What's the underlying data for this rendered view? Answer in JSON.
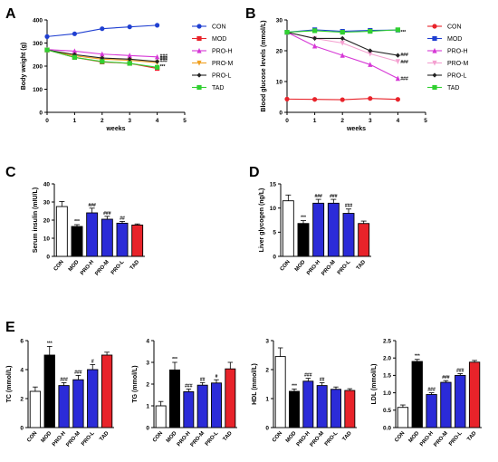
{
  "chart_data": [
    {
      "id": "A",
      "panel_label": "A",
      "type": "line",
      "xlabel": "weeks",
      "ylabel": "Body weight (g)",
      "xlim": [
        0,
        5
      ],
      "ylim": [
        0,
        400
      ],
      "xticks": [
        0,
        1,
        2,
        3,
        4,
        5
      ],
      "yticks": [
        0,
        100,
        200,
        300,
        400
      ],
      "x": [
        0,
        1,
        2,
        3,
        4
      ],
      "series": [
        {
          "name": "CON",
          "color": "#1f3fd1",
          "marker": "circle",
          "values": [
            328,
            340,
            362,
            370,
            377
          ]
        },
        {
          "name": "MOD",
          "color": "#e8232a",
          "marker": "square",
          "values": [
            270,
            238,
            218,
            212,
            190
          ]
        },
        {
          "name": "PRO-H",
          "color": "#d638d6",
          "marker": "triangle-up",
          "values": [
            272,
            265,
            252,
            246,
            240
          ]
        },
        {
          "name": "PRO-M",
          "color": "#f0a020",
          "marker": "triangle-down",
          "values": [
            270,
            245,
            230,
            225,
            215
          ]
        },
        {
          "name": "PRO-L",
          "color": "#222222",
          "marker": "diamond",
          "values": [
            270,
            250,
            235,
            230,
            220
          ]
        },
        {
          "name": "TAD",
          "color": "#30d030",
          "marker": "square",
          "values": [
            270,
            238,
            220,
            212,
            195
          ]
        }
      ],
      "annotations": [
        "###",
        "###",
        "###",
        "***"
      ],
      "legend": "right"
    },
    {
      "id": "B",
      "panel_label": "B",
      "type": "line",
      "xlabel": "weeks",
      "ylabel": "Blood glucose levels (mmol/L)",
      "xlim": [
        0,
        5
      ],
      "ylim": [
        0,
        30
      ],
      "xticks": [
        0,
        1,
        2,
        3,
        4,
        5
      ],
      "yticks": [
        0,
        10,
        20,
        30
      ],
      "x": [
        0,
        1,
        2,
        3,
        4
      ],
      "series": [
        {
          "name": "CON",
          "color": "#e8232a",
          "marker": "circle",
          "values": [
            4.3,
            4.2,
            4.1,
            4.5,
            4.2
          ]
        },
        {
          "name": "MOD",
          "color": "#1f3fd1",
          "marker": "square",
          "values": [
            26,
            26.8,
            26.3,
            26.6,
            26.7
          ]
        },
        {
          "name": "PRO-H",
          "color": "#d638d6",
          "marker": "triangle-up",
          "values": [
            26,
            21.5,
            18.5,
            15.5,
            11
          ]
        },
        {
          "name": "PRO-M",
          "color": "#f4a0d0",
          "marker": "triangle-down",
          "values": [
            26,
            24,
            22.5,
            19,
            16.5
          ]
        },
        {
          "name": "PRO-L",
          "color": "#222222",
          "marker": "diamond",
          "values": [
            26,
            24,
            24,
            20,
            18.5
          ]
        },
        {
          "name": "TAD",
          "color": "#30d030",
          "marker": "square",
          "values": [
            26,
            26.5,
            26,
            26.3,
            26.8
          ]
        }
      ],
      "annotations": [
        "***",
        "###",
        "###",
        "###"
      ],
      "legend": "right"
    },
    {
      "id": "C",
      "panel_label": "C",
      "type": "bar",
      "ylabel": "Serum insulin (mIU/L)",
      "ylim": [
        0,
        40
      ],
      "yticks": [
        0,
        10,
        20,
        30,
        40
      ],
      "categories": [
        "CON",
        "MOD",
        "PRO-H",
        "PRO-M",
        "PRO-L",
        "TAD"
      ],
      "values": [
        27.5,
        16.5,
        24,
        20.5,
        18.3,
        17.3
      ],
      "errors": [
        2.8,
        1.0,
        2.6,
        1.6,
        1.0,
        0.6
      ],
      "colors": [
        "#ffffff",
        "#000000",
        "#2b2bd8",
        "#2b2bd8",
        "#2b2bd8",
        "#e8232a"
      ],
      "annotations": [
        "",
        "***",
        "###",
        "###",
        "##",
        ""
      ]
    },
    {
      "id": "D",
      "panel_label": "D",
      "type": "bar",
      "ylabel": "Liver glycogen (ng/L)",
      "ylim": [
        0,
        15
      ],
      "yticks": [
        0,
        5,
        10,
        15
      ],
      "categories": [
        "CON",
        "MOD",
        "PRO-H",
        "PRO-M",
        "PRO-L",
        "TAD"
      ],
      "values": [
        11.5,
        6.8,
        11,
        11,
        8.9,
        6.8
      ],
      "errors": [
        1.2,
        0.6,
        0.8,
        0.8,
        0.9,
        0.5
      ],
      "colors": [
        "#ffffff",
        "#000000",
        "#2b2bd8",
        "#2b2bd8",
        "#2b2bd8",
        "#e8232a"
      ],
      "annotations": [
        "",
        "***",
        "###",
        "###",
        "###",
        ""
      ]
    },
    {
      "id": "E1",
      "panel_label": "E",
      "type": "bar",
      "ylabel": "TC (mmol/L)",
      "ylim": [
        0,
        6
      ],
      "yticks": [
        0,
        2,
        4,
        6
      ],
      "categories": [
        "CON",
        "MOD",
        "PRO-H",
        "PRO-M",
        "PRO-L",
        "TAD"
      ],
      "values": [
        2.5,
        5.0,
        2.9,
        3.3,
        4.0,
        5.0
      ],
      "errors": [
        0.3,
        0.6,
        0.2,
        0.3,
        0.35,
        0.2
      ],
      "colors": [
        "#ffffff",
        "#000000",
        "#2b2bd8",
        "#2b2bd8",
        "#2b2bd8",
        "#e8232a"
      ],
      "annotations": [
        "",
        "***",
        "###",
        "###",
        "#",
        ""
      ]
    },
    {
      "id": "E2",
      "panel_label": "",
      "type": "bar",
      "ylabel": "TG (mmol/L)",
      "ylim": [
        0,
        4
      ],
      "yticks": [
        0,
        1,
        2,
        3,
        4
      ],
      "categories": [
        "CON",
        "MOD",
        "PRO-H",
        "PRO-M",
        "PRO-L",
        "TAD"
      ],
      "values": [
        1.0,
        2.65,
        1.65,
        1.95,
        2.05,
        2.7
      ],
      "errors": [
        0.2,
        0.35,
        0.12,
        0.12,
        0.15,
        0.3
      ],
      "colors": [
        "#ffffff",
        "#000000",
        "#2b2bd8",
        "#2b2bd8",
        "#2b2bd8",
        "#e8232a"
      ],
      "annotations": [
        "",
        "***",
        "###",
        "##",
        "#",
        ""
      ]
    },
    {
      "id": "E3",
      "panel_label": "",
      "type": "bar",
      "ylabel": "HDL (mmol/L)",
      "ylim": [
        0,
        3
      ],
      "yticks": [
        0,
        1,
        2,
        3
      ],
      "categories": [
        "CON",
        "MOD",
        "PRO-H",
        "PRO-M",
        "PRO-L",
        "TAD"
      ],
      "values": [
        2.45,
        1.25,
        1.6,
        1.45,
        1.32,
        1.28
      ],
      "errors": [
        0.3,
        0.08,
        0.1,
        0.1,
        0.08,
        0.06
      ],
      "colors": [
        "#ffffff",
        "#000000",
        "#2b2bd8",
        "#2b2bd8",
        "#2b2bd8",
        "#e8232a"
      ],
      "annotations": [
        "",
        "***",
        "###",
        "##",
        "",
        ""
      ]
    },
    {
      "id": "E4",
      "panel_label": "",
      "type": "bar",
      "ylabel": "LDL (mmol/L)",
      "ylim": [
        0,
        2.5
      ],
      "yticks": [
        0,
        0.5,
        1.0,
        1.5,
        2.0,
        2.5
      ],
      "categories": [
        "CON",
        "MOD",
        "PRO-H",
        "PRO-M",
        "PRO-L",
        "TAD"
      ],
      "values": [
        0.58,
        1.9,
        0.95,
        1.3,
        1.5,
        1.88
      ],
      "errors": [
        0.07,
        0.06,
        0.05,
        0.05,
        0.05,
        0.05
      ],
      "colors": [
        "#ffffff",
        "#000000",
        "#2b2bd8",
        "#2b2bd8",
        "#2b2bd8",
        "#e8232a"
      ],
      "annotations": [
        "",
        "***",
        "###",
        "###",
        "###",
        ""
      ]
    }
  ]
}
